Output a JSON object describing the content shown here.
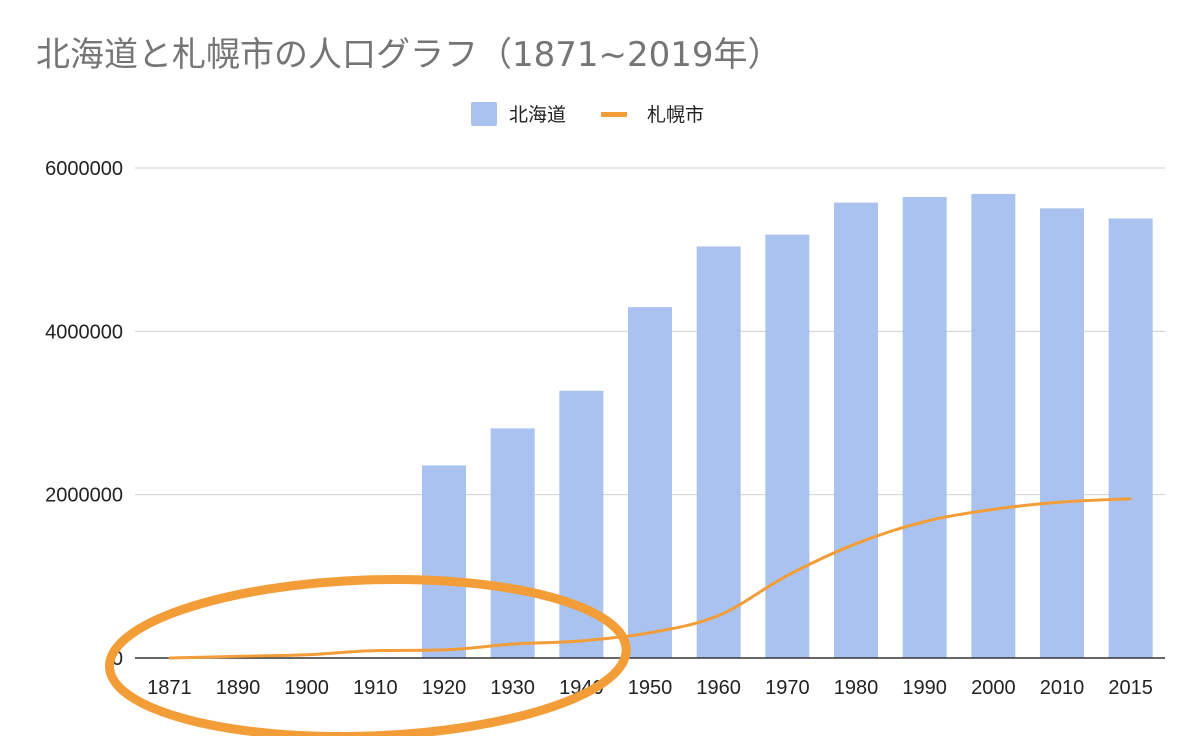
{
  "chart_data": {
    "type": "bar",
    "title": "北海道と札幌市の人口グラフ（1871~2019年）",
    "categories": [
      "1871",
      "1890",
      "1900",
      "1910",
      "1920",
      "1930",
      "1940",
      "1950",
      "1960",
      "1970",
      "1980",
      "1990",
      "2000",
      "2010",
      "2015"
    ],
    "series": [
      {
        "name": "北海道",
        "type": "bar",
        "color": "#aac2f0",
        "values": [
          null,
          null,
          null,
          null,
          2359000,
          2812000,
          3272000,
          4296000,
          5039000,
          5184000,
          5576000,
          5644000,
          5683000,
          5506000,
          5382000
        ]
      },
      {
        "name": "札幌市",
        "type": "line",
        "color": "#f29d38",
        "values": [
          0,
          20000,
          40000,
          90000,
          100000,
          170000,
          210000,
          310000,
          520000,
          1010000,
          1400000,
          1670000,
          1820000,
          1910000,
          1950000
        ]
      }
    ],
    "y_ticks": [
      "6000000",
      "4000000",
      "2000000",
      "0"
    ],
    "ylim": [
      0,
      6000000
    ],
    "xlabel": "",
    "ylabel": "",
    "grid": true,
    "legend_position": "top-center",
    "annotation": {
      "shape": "ellipse",
      "color": "#f29d38"
    }
  }
}
